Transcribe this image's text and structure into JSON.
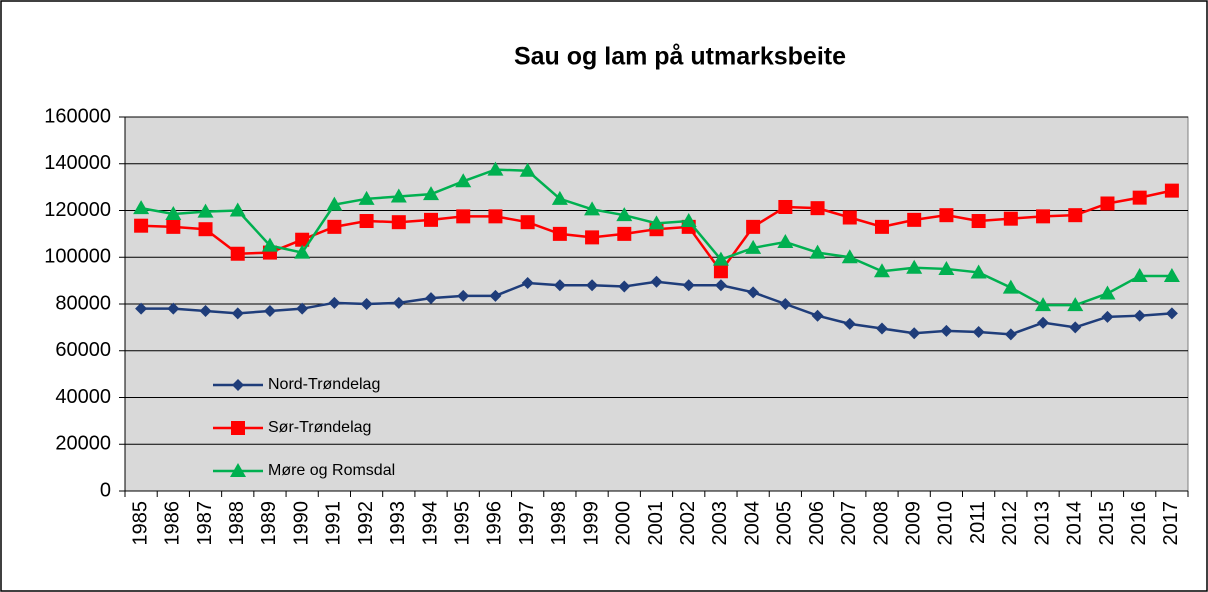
{
  "chart_data": {
    "type": "line",
    "title": "Sau og lam på utmarksbeite",
    "categories": [
      "1985",
      "1986",
      "1987",
      "1988",
      "1989",
      "1990",
      "1991",
      "1992",
      "1993",
      "1994",
      "1995",
      "1996",
      "1997",
      "1998",
      "1999",
      "2000",
      "2001",
      "2002",
      "2003",
      "2004",
      "2005",
      "2006",
      "2007",
      "2008",
      "2009",
      "2010",
      "2011",
      "2012",
      "2013",
      "2014",
      "2015",
      "2016",
      "2017"
    ],
    "series": [
      {
        "name": "Nord-Trøndelag",
        "color": "#1f3d7a",
        "marker": "diamond",
        "values": [
          78000,
          78000,
          77000,
          76000,
          77000,
          78000,
          80500,
          80000,
          80500,
          82500,
          83500,
          83500,
          89000,
          88000,
          88000,
          87500,
          89500,
          88000,
          88000,
          85000,
          80000,
          75000,
          71500,
          69500,
          67500,
          68500,
          68000,
          67000,
          72000,
          70000,
          74500,
          75000,
          76000
        ]
      },
      {
        "name": "Sør-Trøndelag",
        "color": "#ff0000",
        "marker": "square",
        "values": [
          113500,
          113000,
          112000,
          101500,
          102000,
          107500,
          113000,
          115500,
          115000,
          116000,
          117500,
          117500,
          115000,
          110000,
          108500,
          110000,
          112000,
          113000,
          94000,
          113000,
          121500,
          121000,
          117000,
          113000,
          116000,
          118000,
          115500,
          116500,
          117500,
          118000,
          123000,
          125500,
          128500
        ]
      },
      {
        "name": "Møre og Romsdal",
        "color": "#00b050",
        "marker": "triangle",
        "values": [
          121000,
          118500,
          119500,
          120000,
          105000,
          102000,
          122500,
          125000,
          126000,
          127000,
          132500,
          137500,
          137000,
          125000,
          120500,
          118000,
          114500,
          115500,
          99000,
          104000,
          106500,
          102000,
          100000,
          94000,
          95500,
          95000,
          93500,
          87000,
          79500,
          79500,
          84500,
          92000,
          92000
        ]
      }
    ],
    "ylim": [
      0,
      160000
    ],
    "yticks": [
      0,
      20000,
      40000,
      60000,
      80000,
      100000,
      120000,
      140000,
      160000
    ],
    "grid": true,
    "legend": "lower-left"
  }
}
